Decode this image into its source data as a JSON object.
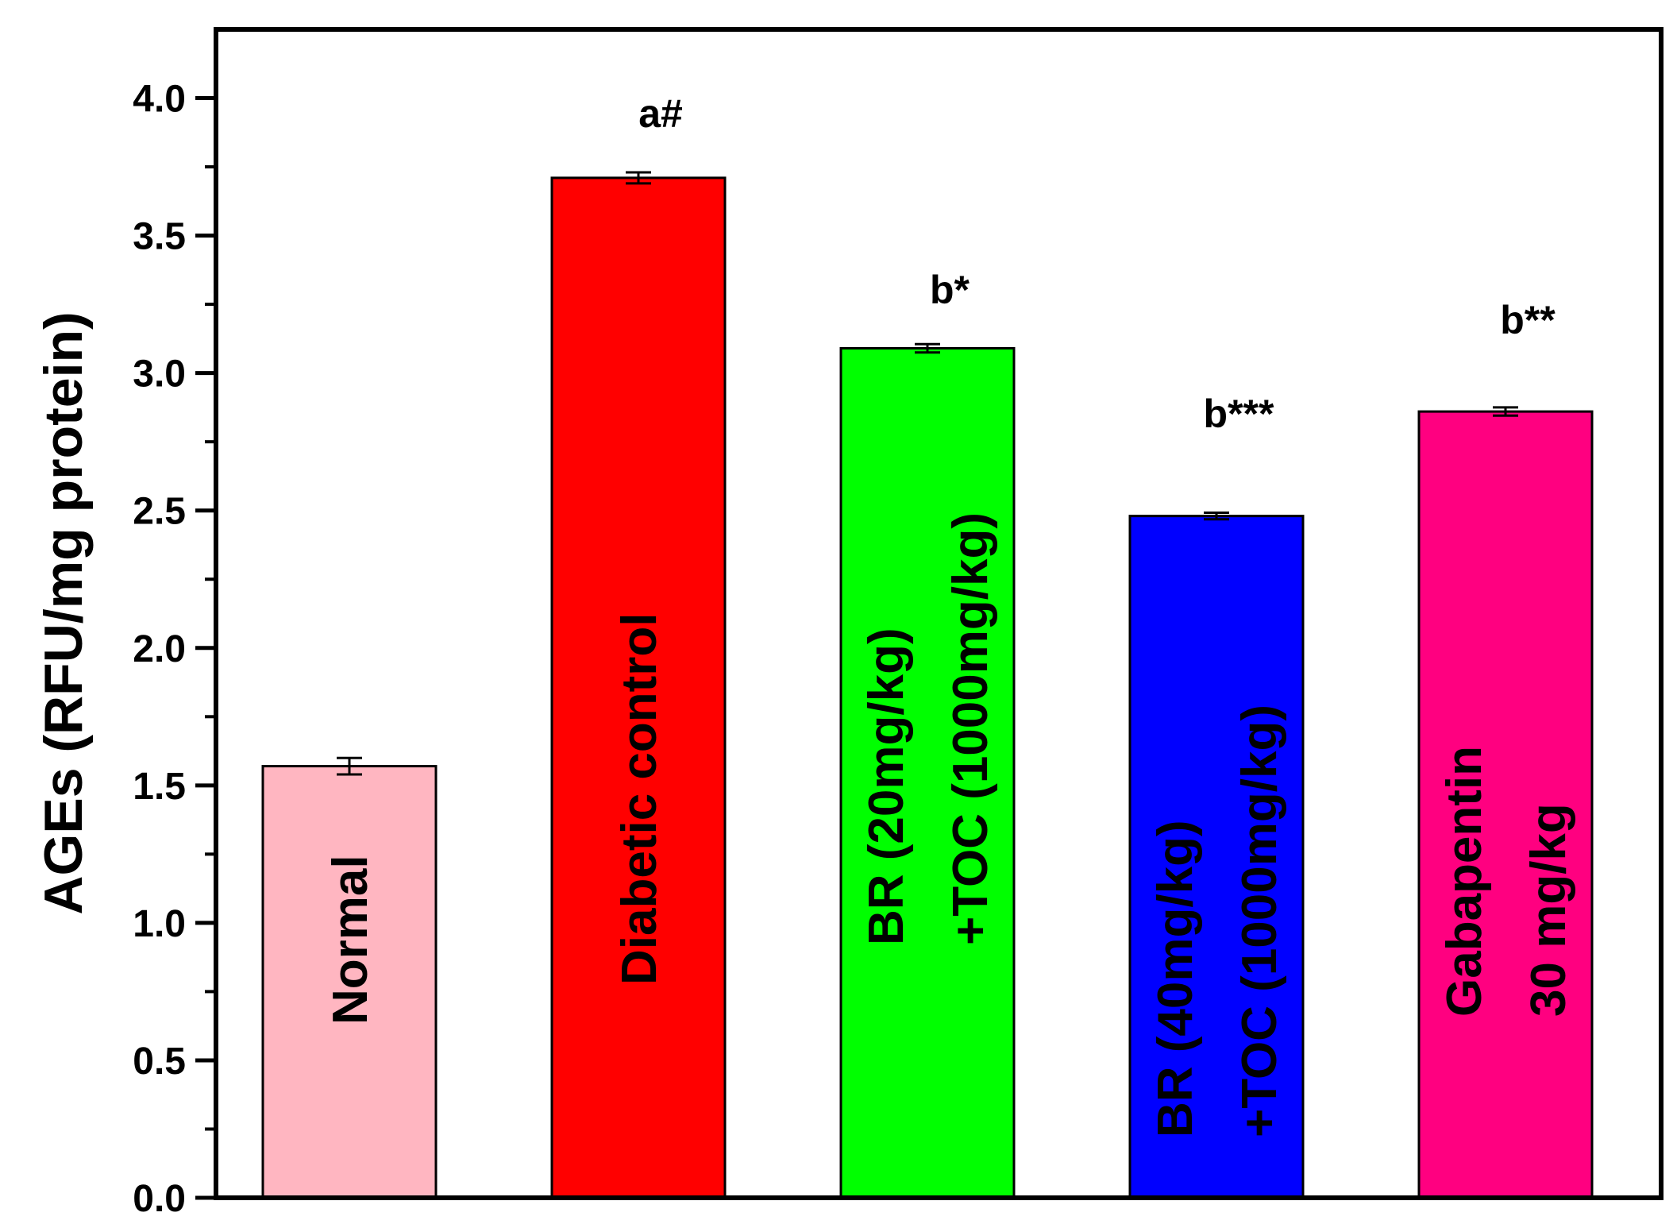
{
  "chart_data": {
    "type": "bar",
    "title": "",
    "xlabel": "",
    "ylabel": "AGEs (RFU/mg protein)",
    "ylim": [
      0,
      4.25
    ],
    "yticks": [
      "0.0",
      "0.5",
      "1.0",
      "1.5",
      "2.0",
      "2.5",
      "3.0",
      "3.5",
      "4.0"
    ],
    "grid": false,
    "legend": "none",
    "categories": [
      [
        "Normal"
      ],
      [
        "Diabetic control"
      ],
      [
        "BR (20mg/kg)",
        "+TOC (1000mg/kg)"
      ],
      [
        "BR (40mg/kg)",
        "+TOC (1000mg/kg)"
      ],
      [
        "Gabapentin",
        "30 mg/kg"
      ]
    ],
    "values": [
      1.57,
      3.71,
      3.09,
      2.48,
      2.86
    ],
    "errors": [
      0.03,
      0.02,
      0.015,
      0.012,
      0.015
    ],
    "annotations": [
      "",
      "a#",
      "b*",
      "b***",
      "b**"
    ],
    "colors": [
      "#ffb6c1",
      "#ff0000",
      "#00ff00",
      "#0000ff",
      "#ff0080"
    ]
  }
}
